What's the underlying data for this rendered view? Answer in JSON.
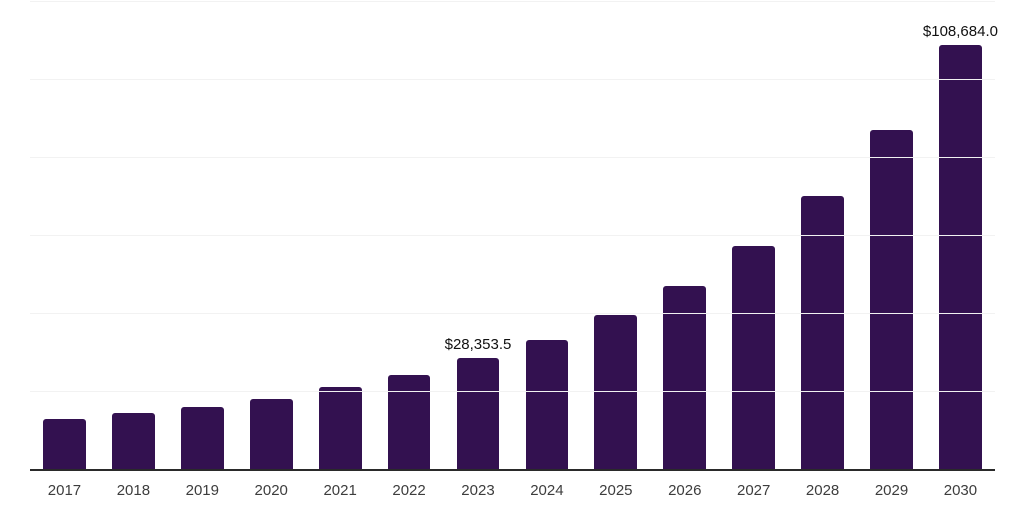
{
  "chart": {
    "background": "#ffffff",
    "bar_color": "#331150",
    "axis_color": "#2a2a2a",
    "gridline_color": "#f2f2f2",
    "value_label_color": "#111111",
    "tick_label_color": "#3d3d3d"
  },
  "chart_data": {
    "type": "bar",
    "title": "",
    "xlabel": "",
    "ylabel": "",
    "categories": [
      "2017",
      "2018",
      "2019",
      "2020",
      "2021",
      "2022",
      "2023",
      "2024",
      "2025",
      "2026",
      "2027",
      "2028",
      "2029",
      "2030"
    ],
    "values": [
      12900,
      14400,
      16000,
      18000,
      21000,
      24200,
      28353.5,
      33000,
      39500,
      47000,
      57300,
      70000,
      86900,
      108684
    ],
    "point_labels": {
      "2023": "$28,353.5",
      "2030": "$108,684.0"
    },
    "ylim": [
      0,
      120000
    ],
    "gridline_values": [
      20000,
      40000,
      60000,
      80000,
      100000,
      120000
    ],
    "grid": "horizontal",
    "legend_position": "none",
    "y_tick_labels_visible": false
  }
}
